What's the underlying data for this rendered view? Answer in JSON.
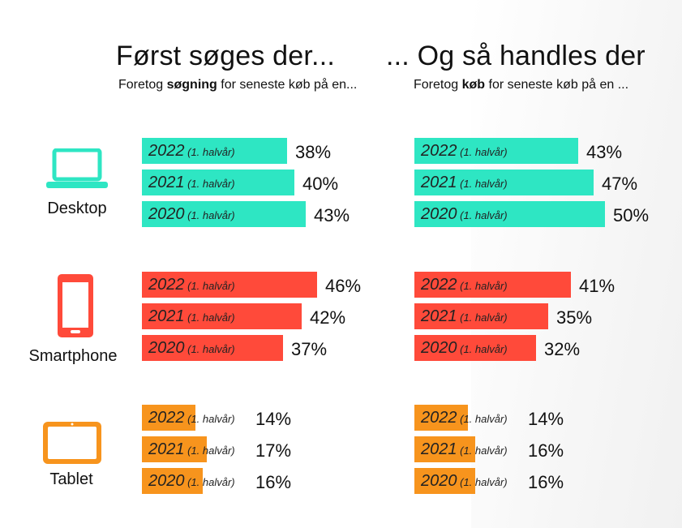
{
  "left": {
    "title": "Først søges der...",
    "subtitle_pre": "Foretog ",
    "subtitle_bold": "søgning",
    "subtitle_post": " for seneste køb på en..."
  },
  "right": {
    "title": "... Og så handles der",
    "subtitle_pre": "Foretog ",
    "subtitle_bold": "køb",
    "subtitle_post": " for seneste køb på en ..."
  },
  "devices": [
    {
      "label": "Desktop",
      "icon": "laptop-icon",
      "color": "#2ee6c3"
    },
    {
      "label": "Smartphone",
      "icon": "smartphone-icon",
      "color": "#ff4a3a"
    },
    {
      "label": "Tablet",
      "icon": "tablet-icon",
      "color": "#f7941d"
    }
  ],
  "chart_data": [
    {
      "type": "bar",
      "title": "Først søges der...",
      "subtitle": "Foretog søgning for seneste køb på en...",
      "categories": [
        "Desktop",
        "Smartphone",
        "Tablet"
      ],
      "series": [
        {
          "name": "2022",
          "name_suffix": "(1. halvår)",
          "values": [
            38,
            46,
            14
          ],
          "labels": [
            "38%",
            "46%",
            "14%"
          ]
        },
        {
          "name": "2021",
          "name_suffix": "(1. halvår)",
          "values": [
            40,
            42,
            17
          ],
          "labels": [
            "40%",
            "42%",
            "17%"
          ]
        },
        {
          "name": "2020",
          "name_suffix": "(1. halvår)",
          "values": [
            43,
            37,
            16
          ],
          "labels": [
            "43%",
            "37%",
            "16%"
          ]
        }
      ],
      "unit": "%"
    },
    {
      "type": "bar",
      "title": "... Og så handles der",
      "subtitle": "Foretog køb for seneste køb på en ...",
      "categories": [
        "Desktop",
        "Smartphone",
        "Tablet"
      ],
      "series": [
        {
          "name": "2022",
          "name_suffix": "(1. halvår)",
          "values": [
            43,
            41,
            14
          ],
          "labels": [
            "43%",
            "41%",
            "14%"
          ]
        },
        {
          "name": "2021",
          "name_suffix": "(1. halvår)",
          "values": [
            47,
            35,
            16
          ],
          "labels": [
            "47%",
            "35%",
            "16%"
          ]
        },
        {
          "name": "2020",
          "name_suffix": "(1. halvår)",
          "values": [
            50,
            32,
            16
          ],
          "labels": [
            "50%",
            "32%",
            "16%"
          ]
        }
      ],
      "unit": "%"
    }
  ]
}
